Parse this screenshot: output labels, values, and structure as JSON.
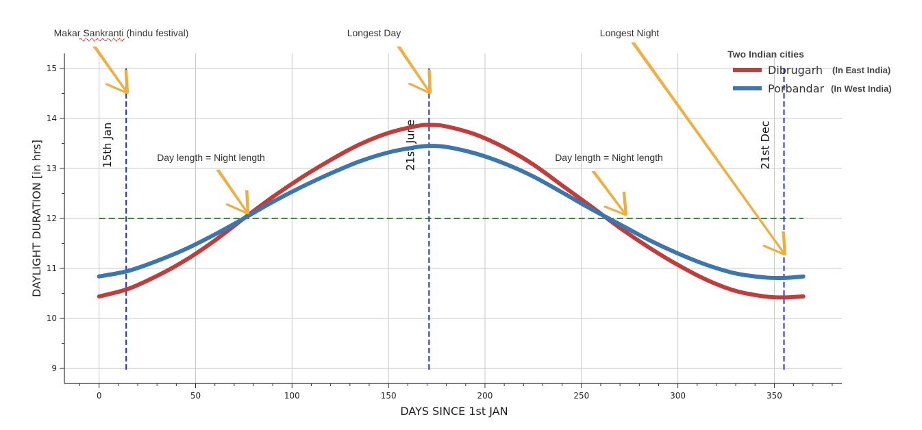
{
  "chart_data": {
    "type": "line",
    "title": "",
    "xlabel": "DAYS SINCE 1st JAN",
    "ylabel": "DAYLIGHT DURATION [in hrs]",
    "xlim": [
      -18,
      385
    ],
    "ylim": [
      8.7,
      15.3
    ],
    "xticks": [
      0,
      50,
      100,
      150,
      200,
      250,
      300,
      350
    ],
    "yticks": [
      9,
      10,
      11,
      12,
      13,
      14,
      15
    ],
    "grid": true,
    "x": [
      0,
      15,
      30,
      45,
      60,
      75,
      90,
      105,
      120,
      135,
      150,
      165,
      172,
      180,
      195,
      210,
      225,
      240,
      255,
      270,
      285,
      300,
      315,
      330,
      345,
      355,
      365
    ],
    "series": [
      {
        "name": "Dibrugarh",
        "note": "(In East India)",
        "color": "#c43c39",
        "values": [
          10.44,
          10.59,
          10.85,
          11.17,
          11.56,
          12.0,
          12.43,
          12.82,
          13.17,
          13.48,
          13.71,
          13.85,
          13.87,
          13.84,
          13.68,
          13.42,
          13.08,
          12.66,
          12.24,
          11.81,
          11.42,
          11.07,
          10.77,
          10.55,
          10.44,
          10.42,
          10.44
        ]
      },
      {
        "name": "Porbandar",
        "note": "(In West India)",
        "color": "#3a77b0",
        "values": [
          10.84,
          10.95,
          11.15,
          11.39,
          11.68,
          12.0,
          12.33,
          12.63,
          12.9,
          13.14,
          13.32,
          13.43,
          13.45,
          13.43,
          13.3,
          13.1,
          12.84,
          12.52,
          12.19,
          11.88,
          11.57,
          11.3,
          11.07,
          10.9,
          10.82,
          10.81,
          10.84
        ]
      }
    ],
    "hline": {
      "y": 12,
      "color": "#3a8a3a",
      "style": "dashed"
    },
    "vlines": [
      {
        "x": 14,
        "label": "15th Jan",
        "color": "#2030e0"
      },
      {
        "x": 171,
        "label": "21st June",
        "color": "#2030e0"
      },
      {
        "x": 355,
        "label": "21st Dec",
        "color": "#2030e0"
      }
    ],
    "legend": {
      "title": "Two Indian cities",
      "placement": "top-right"
    },
    "annotations": [
      {
        "text": "Makar Sankranti (hindu festival)",
        "target_x": 14
      },
      {
        "text": "Longest Day",
        "target_x": 171
      },
      {
        "text": "Longest Night",
        "target_x": 355
      },
      {
        "text": "Day length = Night length",
        "target_x": 75
      },
      {
        "text": "Day length = Night length",
        "target_x": 271
      }
    ]
  },
  "colors": {
    "grid": "#c8c8c8",
    "axis": "#333333",
    "arrow": "#f0ad3c"
  }
}
